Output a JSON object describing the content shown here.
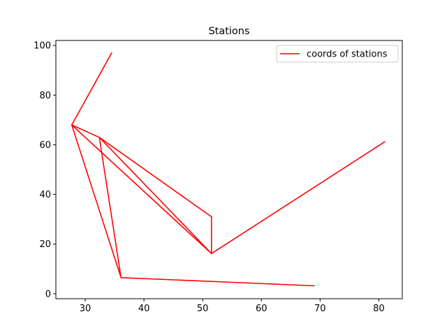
{
  "chart_data": {
    "type": "line",
    "title": "Stations",
    "xlabel": "",
    "ylabel": "",
    "xlim": [
      25,
      84
    ],
    "ylim": [
      -2,
      102
    ],
    "xticks": [
      30,
      40,
      50,
      60,
      70,
      80
    ],
    "yticks": [
      0,
      20,
      40,
      60,
      80,
      100
    ],
    "grid": false,
    "legend_position": "top-right",
    "series": [
      {
        "name": "coords of stations",
        "color": "#ff0000",
        "x": [
          34.5,
          27.7,
          32.4,
          51.5,
          51.5,
          27.7,
          36.1,
          32.4,
          51.5,
          81.0,
          51.5,
          32.4,
          36.1,
          69.0
        ],
        "y": [
          97.0,
          68.0,
          63.0,
          31.0,
          16.2,
          68.0,
          6.5,
          63.0,
          16.2,
          61.2,
          16.2,
          63.0,
          6.5,
          3.2
        ]
      }
    ]
  }
}
